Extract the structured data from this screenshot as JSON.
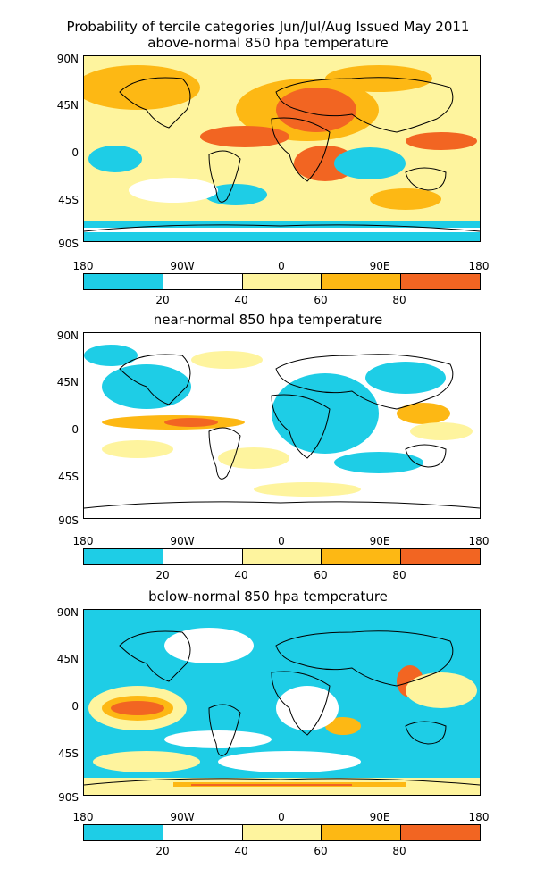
{
  "title": "Probability of tercile categories Jun/Jul/Aug Issued May 2011",
  "panels": [
    {
      "subtitle": "above-normal 850 hpa temperature"
    },
    {
      "subtitle": "near-normal 850 hpa temperature"
    },
    {
      "subtitle": "below-normal 850 hpa temperature"
    }
  ],
  "lat_ticks": [
    "90N",
    "45N",
    "0",
    "45S",
    "90S"
  ],
  "lon_ticks": [
    "180",
    "90W",
    "0",
    "90E",
    "180"
  ],
  "colorbar": {
    "colors": [
      "#1ecde6",
      "#ffffff",
      "#fef49e",
      "#fdb814",
      "#f26522"
    ],
    "labels": [
      "20",
      "40",
      "60",
      "80"
    ]
  }
}
